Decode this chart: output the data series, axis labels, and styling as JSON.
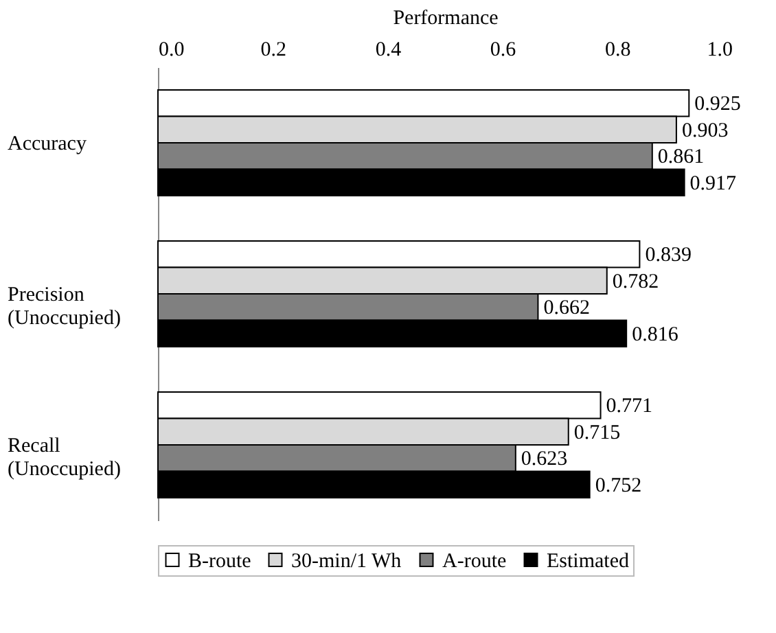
{
  "chart_data": {
    "type": "bar",
    "orientation": "horizontal",
    "xlabel": "Performance",
    "categories": [
      "Accuracy",
      "Precision (Unoccupied)",
      "Recall (Unoccupied)"
    ],
    "series": [
      {
        "name": "B-route",
        "color": "#ffffff",
        "values": [
          0.925,
          0.839,
          0.771
        ]
      },
      {
        "name": "30-min/1 Wh",
        "color": "#d9d9d9",
        "values": [
          0.903,
          0.782,
          0.715
        ]
      },
      {
        "name": "A-route",
        "color": "#808080",
        "values": [
          0.861,
          0.662,
          0.623
        ]
      },
      {
        "name": "Estimated",
        "color": "#000000",
        "values": [
          0.917,
          0.816,
          0.752
        ]
      }
    ],
    "xlim": [
      0,
      1
    ],
    "xticks": [
      {
        "value": 0,
        "label": "0.0"
      },
      {
        "value": 0.2,
        "label": "0.2"
      },
      {
        "value": 0.4,
        "label": "0.4"
      },
      {
        "value": 0.6,
        "label": "0.6"
      },
      {
        "value": 0.8,
        "label": "0.8"
      },
      {
        "value": 1,
        "label": "1.0"
      }
    ],
    "data_labels": true,
    "legend": "bottom",
    "grid": false
  }
}
